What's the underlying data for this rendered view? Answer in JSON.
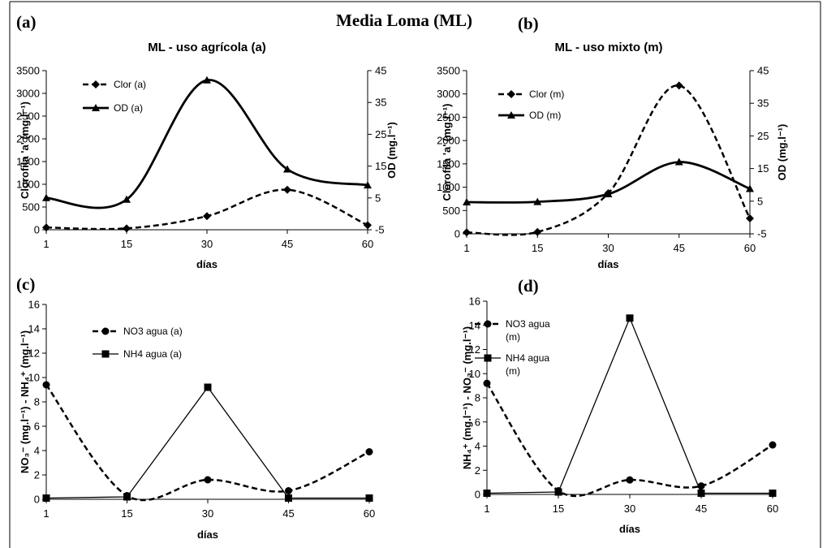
{
  "figure": {
    "title": "Media Loma (ML)",
    "panel_labels": [
      "(a)",
      "(b)",
      "(c)",
      "(d)"
    ]
  },
  "chart_data": [
    {
      "id": "a",
      "type": "line",
      "title": "ML - uso agrícola (a)",
      "xlabel": "días",
      "ylabel": "Clorofila 'a' (mg.l⁻¹)",
      "y2label": "OD (mg.l⁻¹)",
      "categories": [
        "1",
        "15",
        "30",
        "45",
        "60"
      ],
      "ylim": [
        0,
        3500
      ],
      "yticks": [
        0,
        500,
        1000,
        1500,
        2000,
        2500,
        3000,
        3500
      ],
      "y2lim": [
        -5,
        45
      ],
      "y2ticks": [
        -5,
        5,
        15,
        25,
        35,
        45
      ],
      "legend_position": "top-left",
      "series": [
        {
          "name": "Clor (a)",
          "axis": "left",
          "style": "dashed",
          "marker": "diamond",
          "values": [
            50,
            30,
            300,
            880,
            100
          ]
        },
        {
          "name": "OD (a)",
          "axis": "right",
          "style": "solid",
          "marker": "triangle",
          "values": [
            5,
            4.5,
            42,
            14,
            9
          ]
        }
      ]
    },
    {
      "id": "b",
      "type": "line",
      "title": "ML - uso mixto (m)",
      "xlabel": "días",
      "ylabel": "Clorofila 'a' (mg.l⁻¹)",
      "y2label": "OD (mg.l⁻¹)",
      "categories": [
        "1",
        "15",
        "30",
        "45",
        "60"
      ],
      "ylim": [
        0,
        3500
      ],
      "yticks": [
        0,
        500,
        1000,
        1500,
        2000,
        2500,
        3000,
        3500
      ],
      "y2lim": [
        -5,
        45
      ],
      "y2ticks": [
        -5,
        5,
        15,
        25,
        35,
        45
      ],
      "legend_position": "top-left",
      "series": [
        {
          "name": "Clor (m)",
          "axis": "left",
          "style": "dashed",
          "marker": "diamond",
          "values": [
            30,
            40,
            870,
            3180,
            330
          ]
        },
        {
          "name": "OD (m)",
          "axis": "right",
          "style": "solid",
          "marker": "triangle",
          "values": [
            4.7,
            4.8,
            7.2,
            17,
            8.8
          ]
        }
      ]
    },
    {
      "id": "c",
      "type": "line",
      "title": "",
      "xlabel": "días",
      "ylabel": "NO₃⁻ (mg.l⁻¹) - NH₄⁺ (mg.l⁻¹)",
      "categories": [
        "1",
        "15",
        "30",
        "45",
        "60"
      ],
      "ylim": [
        0,
        16
      ],
      "yticks": [
        0,
        2,
        4,
        6,
        8,
        10,
        12,
        14,
        16
      ],
      "legend_position": "top-left",
      "series": [
        {
          "name": "NO3 agua (a)",
          "style": "dashed",
          "marker": "circle",
          "smooth": true,
          "values": [
            9.4,
            0.3,
            1.6,
            0.7,
            3.9
          ]
        },
        {
          "name": "NH4 agua (a)",
          "style": "solid",
          "marker": "square",
          "smooth": false,
          "values": [
            0.1,
            0.2,
            9.2,
            0.1,
            0.1
          ]
        }
      ]
    },
    {
      "id": "d",
      "type": "line",
      "title": "",
      "xlabel": "días",
      "ylabel": "NH₄⁺ (mg.l⁻¹) - NO₃⁻ (mg.l⁻¹)",
      "categories": [
        "1",
        "15",
        "30",
        "45",
        "60"
      ],
      "ylim": [
        0,
        16
      ],
      "yticks": [
        0,
        2,
        4,
        6,
        8,
        10,
        12,
        14,
        16
      ],
      "legend_position": "top-left",
      "series": [
        {
          "name": "NO3 agua (m)",
          "style": "dashed",
          "marker": "circle",
          "smooth": true,
          "values": [
            9.2,
            0.3,
            1.2,
            0.7,
            4.1
          ]
        },
        {
          "name": "NH4 agua (m)",
          "style": "solid",
          "marker": "square",
          "smooth": false,
          "values": [
            0.1,
            0.2,
            14.6,
            0.1,
            0.1
          ]
        }
      ]
    }
  ]
}
